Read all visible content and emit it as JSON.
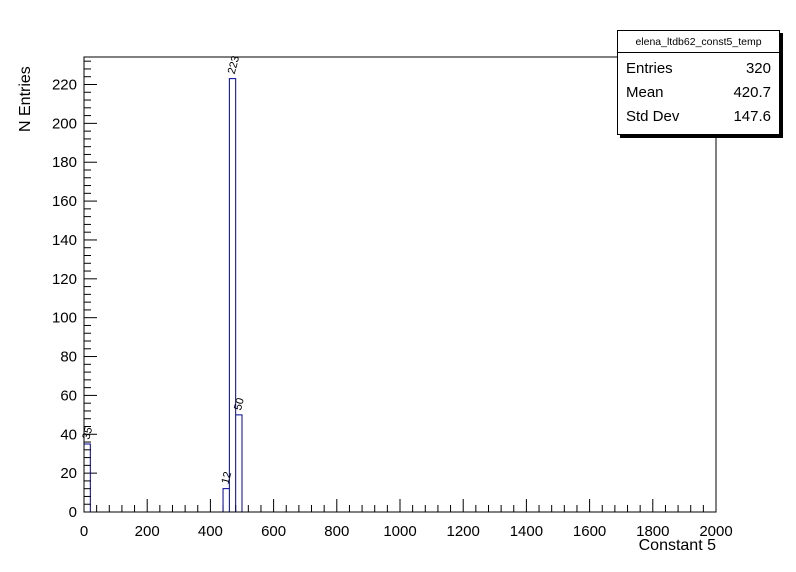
{
  "chart_data": {
    "type": "bar",
    "subtype": "histogram-step",
    "title": "elena_ltdb62_const5_temp",
    "xlabel": "Constant 5",
    "ylabel": "N Entries",
    "xlim": [
      0,
      2000
    ],
    "ylim": [
      0,
      234.15
    ],
    "x_major_step": 200,
    "x_minor_per_major": 5,
    "y_major_step": 20,
    "y_minor_per_major": 5,
    "bin_width": 20,
    "bins": [
      {
        "x0": 0,
        "value": 35
      },
      {
        "x0": 440,
        "value": 12
      },
      {
        "x0": 460,
        "value": 223
      },
      {
        "x0": 480,
        "value": 50
      }
    ],
    "line_color": "#000099",
    "grid": false,
    "legend_position": "none",
    "stats": {
      "entries": 320,
      "mean": 420.7,
      "std_dev": 147.6
    }
  },
  "stats_box": {
    "title": "elena_ltdb62_const5_temp",
    "rows": [
      {
        "label": "Entries",
        "value": "320"
      },
      {
        "label": "Mean",
        "value": "420.7"
      },
      {
        "label": "Std Dev",
        "value": "147.6"
      }
    ]
  },
  "axes": {
    "xlabel": "Constant 5",
    "ylabel": "N Entries"
  }
}
